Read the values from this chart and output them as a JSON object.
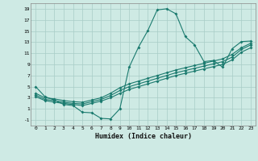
{
  "xlabel": "Humidex (Indice chaleur)",
  "background_color": "#ceeae4",
  "grid_color": "#a8cdc7",
  "line_color": "#1a7a6e",
  "xlim": [
    -0.5,
    23.5
  ],
  "ylim": [
    -2.0,
    20.0
  ],
  "xticks": [
    0,
    1,
    2,
    3,
    4,
    5,
    6,
    7,
    8,
    9,
    10,
    11,
    12,
    13,
    14,
    15,
    16,
    17,
    18,
    19,
    20,
    21,
    22,
    23
  ],
  "yticks": [
    -1,
    1,
    3,
    5,
    7,
    9,
    11,
    13,
    15,
    17,
    19
  ],
  "line1_x": [
    0,
    1,
    2,
    3,
    4,
    5,
    6,
    7,
    8,
    9,
    10,
    11,
    12,
    13,
    14,
    15,
    16,
    17,
    18,
    19,
    20,
    21,
    22,
    23
  ],
  "line1_y": [
    5.0,
    3.2,
    2.6,
    1.8,
    1.6,
    0.4,
    0.3,
    -0.7,
    -0.8,
    1.0,
    8.5,
    12.1,
    15.1,
    18.8,
    19.0,
    18.1,
    14.0,
    12.5,
    9.5,
    9.7,
    8.5,
    11.8,
    13.1,
    13.2
  ],
  "line2_x": [
    0,
    1,
    2,
    3,
    4,
    5,
    6,
    7,
    8,
    9,
    10,
    11,
    12,
    13,
    14,
    15,
    16,
    17,
    18,
    19,
    20,
    21,
    22,
    23
  ],
  "line2_y": [
    3.8,
    3.0,
    2.8,
    2.5,
    2.3,
    2.2,
    2.6,
    3.0,
    3.8,
    4.8,
    5.5,
    6.0,
    6.5,
    7.0,
    7.5,
    8.0,
    8.4,
    8.8,
    9.2,
    9.6,
    10.0,
    10.8,
    12.0,
    12.8
  ],
  "line3_x": [
    0,
    1,
    2,
    3,
    4,
    5,
    6,
    7,
    8,
    9,
    10,
    11,
    12,
    13,
    14,
    15,
    16,
    17,
    18,
    19,
    20,
    21,
    22,
    23
  ],
  "line3_y": [
    3.5,
    2.7,
    2.5,
    2.2,
    2.0,
    1.9,
    2.3,
    2.7,
    3.4,
    4.3,
    5.0,
    5.5,
    6.0,
    6.5,
    7.0,
    7.5,
    7.9,
    8.3,
    8.7,
    9.1,
    9.5,
    10.3,
    11.7,
    12.5
  ],
  "line4_x": [
    0,
    1,
    2,
    3,
    4,
    5,
    6,
    7,
    8,
    9,
    10,
    11,
    12,
    13,
    14,
    15,
    16,
    17,
    18,
    19,
    20,
    21,
    22,
    23
  ],
  "line4_y": [
    3.2,
    2.5,
    2.2,
    2.0,
    1.8,
    1.6,
    2.0,
    2.4,
    3.0,
    3.8,
    4.5,
    5.0,
    5.5,
    6.0,
    6.5,
    7.0,
    7.4,
    7.8,
    8.2,
    8.6,
    9.0,
    9.8,
    11.2,
    12.0
  ]
}
